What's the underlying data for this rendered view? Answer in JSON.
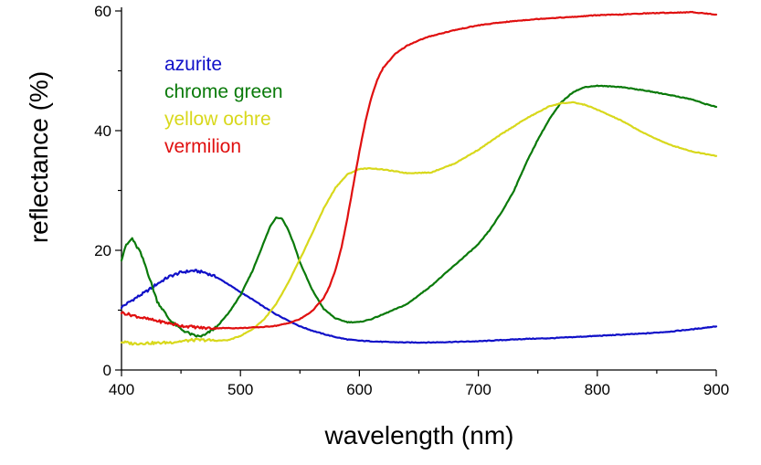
{
  "chart_data": {
    "type": "line",
    "title": "",
    "xlabel": "wavelength (nm)",
    "ylabel": "reflectance (%)",
    "xlim": [
      400,
      900
    ],
    "ylim": [
      0,
      60
    ],
    "xticks": [
      400,
      500,
      600,
      700,
      800,
      900
    ],
    "yticks": [
      0,
      20,
      40,
      60
    ],
    "x_minor_step": 50,
    "y_minor_step": 10,
    "grid": false,
    "legend_position": "top-left",
    "series": [
      {
        "name": "azurite",
        "color": "#1010c8",
        "x": [
          400,
          410,
          420,
          430,
          440,
          450,
          460,
          470,
          480,
          490,
          500,
          510,
          520,
          530,
          540,
          550,
          560,
          570,
          580,
          590,
          600,
          620,
          640,
          660,
          680,
          700,
          720,
          740,
          760,
          780,
          800,
          820,
          840,
          860,
          880,
          900
        ],
        "y": [
          10.5,
          11.8,
          13.0,
          14.4,
          15.6,
          16.3,
          16.6,
          16.3,
          15.5,
          14.3,
          13.0,
          11.8,
          10.5,
          9.3,
          8.3,
          7.3,
          6.6,
          6.0,
          5.5,
          5.1,
          4.9,
          4.7,
          4.6,
          4.6,
          4.7,
          4.8,
          5.0,
          5.2,
          5.3,
          5.5,
          5.7,
          5.9,
          6.1,
          6.4,
          6.8,
          7.3
        ]
      },
      {
        "name": "chrome green",
        "color": "#0a7a0a",
        "x": [
          400,
          403,
          406,
          409,
          412,
          415,
          420,
          425,
          430,
          440,
          450,
          460,
          465,
          470,
          480,
          490,
          500,
          510,
          520,
          525,
          530,
          535,
          540,
          545,
          550,
          560,
          570,
          580,
          590,
          600,
          610,
          620,
          640,
          660,
          680,
          700,
          710,
          720,
          730,
          740,
          750,
          760,
          770,
          780,
          790,
          800,
          820,
          840,
          860,
          880,
          890,
          900
        ],
        "y": [
          18.5,
          20.5,
          21.3,
          22.0,
          20.8,
          20.0,
          17.5,
          14.5,
          11.5,
          8.5,
          6.8,
          5.8,
          5.6,
          5.8,
          7.2,
          9.5,
          12.5,
          16.5,
          21.5,
          24.0,
          25.5,
          25.3,
          23.5,
          21.0,
          18.0,
          13.5,
          10.2,
          8.6,
          8.0,
          8.0,
          8.5,
          9.3,
          11.0,
          14.0,
          17.5,
          21.0,
          23.5,
          26.5,
          30.0,
          34.5,
          38.5,
          42.0,
          44.8,
          46.5,
          47.3,
          47.5,
          47.3,
          46.7,
          46.0,
          45.2,
          44.5,
          44.0
        ]
      },
      {
        "name": "yellow ochre",
        "color": "#d8d81c",
        "x": [
          400,
          410,
          420,
          430,
          440,
          450,
          460,
          470,
          480,
          490,
          500,
          510,
          520,
          530,
          540,
          550,
          560,
          570,
          580,
          590,
          600,
          610,
          620,
          640,
          660,
          680,
          700,
          720,
          740,
          760,
          770,
          780,
          790,
          800,
          820,
          840,
          860,
          880,
          900
        ],
        "y": [
          4.7,
          4.4,
          4.5,
          4.5,
          4.6,
          4.8,
          5.0,
          5.0,
          4.9,
          5.0,
          5.7,
          6.8,
          8.5,
          11.0,
          14.5,
          18.5,
          22.7,
          27.0,
          30.5,
          32.7,
          33.6,
          33.7,
          33.5,
          32.9,
          33.0,
          34.5,
          36.8,
          39.5,
          42.0,
          44.1,
          44.6,
          44.7,
          44.3,
          43.5,
          41.7,
          39.5,
          37.7,
          36.5,
          35.8
        ]
      },
      {
        "name": "vermilion",
        "color": "#e01010",
        "x": [
          400,
          410,
          420,
          430,
          440,
          450,
          460,
          470,
          480,
          490,
          500,
          510,
          520,
          530,
          540,
          550,
          560,
          570,
          575,
          580,
          585,
          590,
          595,
          600,
          605,
          610,
          615,
          620,
          630,
          640,
          650,
          660,
          680,
          700,
          720,
          740,
          760,
          780,
          800,
          820,
          840,
          860,
          880,
          890,
          900
        ],
        "y": [
          9.6,
          9.1,
          8.6,
          8.2,
          7.8,
          7.4,
          7.2,
          7.0,
          7.0,
          7.0,
          7.0,
          7.1,
          7.2,
          7.4,
          7.8,
          8.5,
          9.8,
          12.0,
          14.0,
          16.8,
          20.5,
          25.5,
          31.0,
          36.5,
          41.5,
          45.5,
          48.5,
          50.5,
          52.8,
          54.2,
          55.1,
          55.8,
          56.8,
          57.6,
          58.1,
          58.5,
          58.8,
          59.0,
          59.3,
          59.4,
          59.6,
          59.7,
          59.8,
          59.6,
          59.4
        ]
      }
    ]
  }
}
